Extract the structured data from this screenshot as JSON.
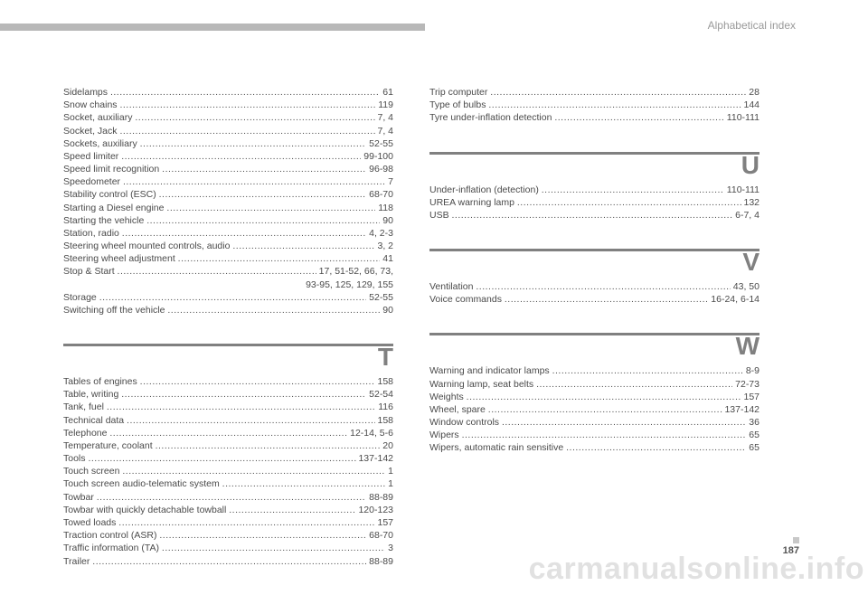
{
  "header": {
    "title": "Alphabetical index",
    "bar_color": "#b8b8b8"
  },
  "page_number": "187",
  "watermark": "carmanualsonline.info",
  "columns": [
    {
      "sections": [
        {
          "letter": null,
          "entries": [
            {
              "label": "Sidelamps",
              "page": "61"
            },
            {
              "label": "Snow chains",
              "page": "119"
            },
            {
              "label": "Socket, auxiliary",
              "page": "7, 4"
            },
            {
              "label": "Socket, Jack",
              "page": "7, 4"
            },
            {
              "label": "Sockets, auxiliary",
              "page": "52-55"
            },
            {
              "label": "Speed limiter",
              "page": "99-100"
            },
            {
              "label": "Speed limit recognition",
              "page": "96-98"
            },
            {
              "label": "Speedometer",
              "page": "7"
            },
            {
              "label": "Stability control (ESC)",
              "page": "68-70"
            },
            {
              "label": "Starting a Diesel engine",
              "page": "118"
            },
            {
              "label": "Starting the vehicle",
              "page": "90"
            },
            {
              "label": "Station, radio",
              "page": "4, 2-3"
            },
            {
              "label": "Steering wheel mounted controls, audio",
              "page": "3, 2"
            },
            {
              "label": "Steering wheel adjustment",
              "page": "41"
            },
            {
              "label": "Stop & Start",
              "page": "17, 51-52, 66, 73,",
              "continuation": "93-95, 125, 129, 155"
            },
            {
              "label": "Storage",
              "page": "52-55"
            },
            {
              "label": "Switching off the vehicle",
              "page": "90"
            }
          ]
        },
        {
          "letter": "T",
          "entries": [
            {
              "label": "Tables of engines",
              "page": "158"
            },
            {
              "label": "Table, writing",
              "page": "52-54"
            },
            {
              "label": "Tank, fuel",
              "page": "116"
            },
            {
              "label": "Technical data",
              "page": "158"
            },
            {
              "label": "Telephone",
              "page": "12-14, 5-6"
            },
            {
              "label": "Temperature, coolant",
              "page": "20"
            },
            {
              "label": "Tools",
              "page": "137-142"
            },
            {
              "label": "Touch screen",
              "page": "1"
            },
            {
              "label": "Touch screen audio-telematic system",
              "page": "1"
            },
            {
              "label": "Towbar",
              "page": "88-89"
            },
            {
              "label": "Towbar with quickly detachable towball",
              "page": "120-123"
            },
            {
              "label": "Towed loads",
              "page": "157"
            },
            {
              "label": "Traction control (ASR)",
              "page": "68-70"
            },
            {
              "label": "Traffic information (TA)",
              "page": "3"
            },
            {
              "label": "Trailer",
              "page": "88-89"
            }
          ]
        }
      ]
    },
    {
      "sections": [
        {
          "letter": null,
          "entries": [
            {
              "label": "Trip computer",
              "page": "28"
            },
            {
              "label": "Type of bulbs",
              "page": "144"
            },
            {
              "label": "Tyre under-inflation detection",
              "page": "110-111"
            }
          ]
        },
        {
          "letter": "U",
          "entries": [
            {
              "label": "Under-inflation (detection)",
              "page": "110-111"
            },
            {
              "label": "UREA warning lamp",
              "page": "132"
            },
            {
              "label": "USB",
              "page": "6-7, 4"
            }
          ]
        },
        {
          "letter": "V",
          "entries": [
            {
              "label": "Ventilation",
              "page": "43, 50"
            },
            {
              "label": "Voice commands",
              "page": "16-24, 6-14"
            }
          ]
        },
        {
          "letter": "W",
          "entries": [
            {
              "label": "Warning and indicator lamps",
              "page": "8-9"
            },
            {
              "label": "Warning lamp, seat belts",
              "page": "72-73"
            },
            {
              "label": "Weights",
              "page": "157"
            },
            {
              "label": "Wheel, spare",
              "page": "137-142"
            },
            {
              "label": "Window controls",
              "page": "36"
            },
            {
              "label": "Wipers",
              "page": "65"
            },
            {
              "label": "Wipers, automatic rain sensitive",
              "page": "65"
            }
          ]
        }
      ]
    }
  ],
  "style": {
    "bg_color": "#ffffff",
    "text_color": "#4a4a4a",
    "rule_color": "#808080",
    "letter_color": "#808080",
    "entry_fontsize": 10.5,
    "letter_fontsize": 28,
    "header_title_color": "#9a9a9a"
  }
}
